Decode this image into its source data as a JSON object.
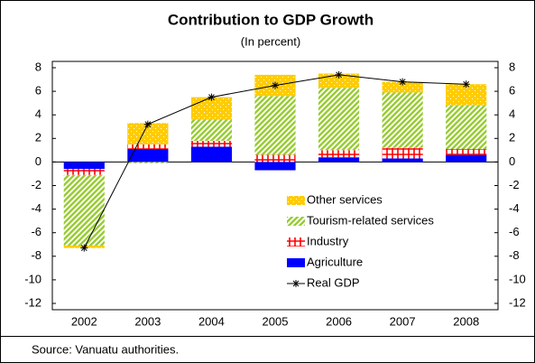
{
  "chart_data": {
    "type": "stacked-bar-line",
    "title": "Contribution to GDP Growth",
    "subtitle": "(In percent)",
    "source": "Source: Vanuatu authorities.",
    "categories": [
      "2002",
      "2003",
      "2004",
      "2005",
      "2006",
      "2007",
      "2008"
    ],
    "series": [
      {
        "name": "Other services",
        "color": "#ffcc00",
        "pattern": "dots",
        "values": [
          -0.2,
          1.8,
          1.9,
          1.8,
          1.2,
          0.9,
          1.8
        ]
      },
      {
        "name": "Tourism-related services",
        "color": "#99cc33",
        "pattern": "stripes",
        "values": [
          -6.0,
          -0.1,
          1.8,
          5.0,
          5.3,
          4.7,
          3.7
        ]
      },
      {
        "name": "Industry",
        "color": "#ff0000",
        "pattern": "crosses",
        "values": [
          -0.5,
          0.4,
          0.5,
          0.6,
          0.6,
          0.9,
          0.5
        ]
      },
      {
        "name": "Agriculture",
        "color": "#0000ff",
        "pattern": "solid",
        "values": [
          -0.6,
          1.1,
          1.3,
          -0.7,
          0.4,
          0.3,
          0.6
        ]
      },
      {
        "name": "Real GDP",
        "color": "#000000",
        "line": true,
        "values": [
          -7.3,
          3.2,
          5.5,
          6.5,
          7.4,
          6.8,
          6.6
        ]
      }
    ],
    "ylim": [
      -12,
      8
    ],
    "yticks": [
      -12,
      -10,
      -8,
      -6,
      -4,
      -2,
      0,
      2,
      4,
      6,
      8
    ],
    "y2lim": [
      -12,
      8
    ],
    "y2ticks": [
      -12,
      -10,
      -8,
      -6,
      -4,
      -2,
      0,
      2,
      4,
      6,
      8
    ],
    "grid": false
  }
}
